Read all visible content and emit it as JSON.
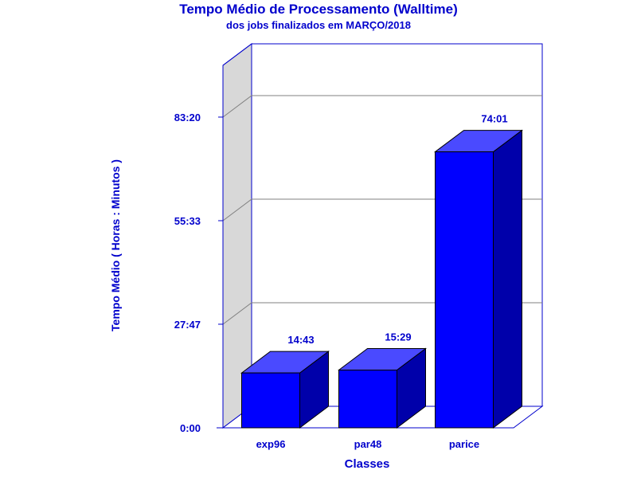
{
  "chart_data": {
    "type": "bar",
    "title": "Tempo Médio de Processamento (Walltime)",
    "subtitle": "dos jobs finalizados em MARÇO/2018",
    "xlabel": "Classes",
    "ylabel": "Tempo Médio ( Horas : Minutos )",
    "categories": [
      "exp96",
      "par48",
      "parice"
    ],
    "values": [
      883,
      929,
      4441
    ],
    "value_labels": [
      "14:43",
      "15:29",
      "74:01"
    ],
    "yticks": [
      0,
      1667,
      3333,
      5000
    ],
    "ytick_labels": [
      "0:00",
      "27:47",
      "55:33",
      "83:20"
    ],
    "ylim": [
      0,
      5833
    ],
    "units": "minutes",
    "grid": true,
    "colors": {
      "bar_front": "#0000ff",
      "bar_top": "#4a4aff",
      "bar_side": "#0000aa",
      "text": "#0000cc",
      "wall_side": "#d8d8d8",
      "axis": "#0000cc",
      "grid": "#808080"
    }
  }
}
